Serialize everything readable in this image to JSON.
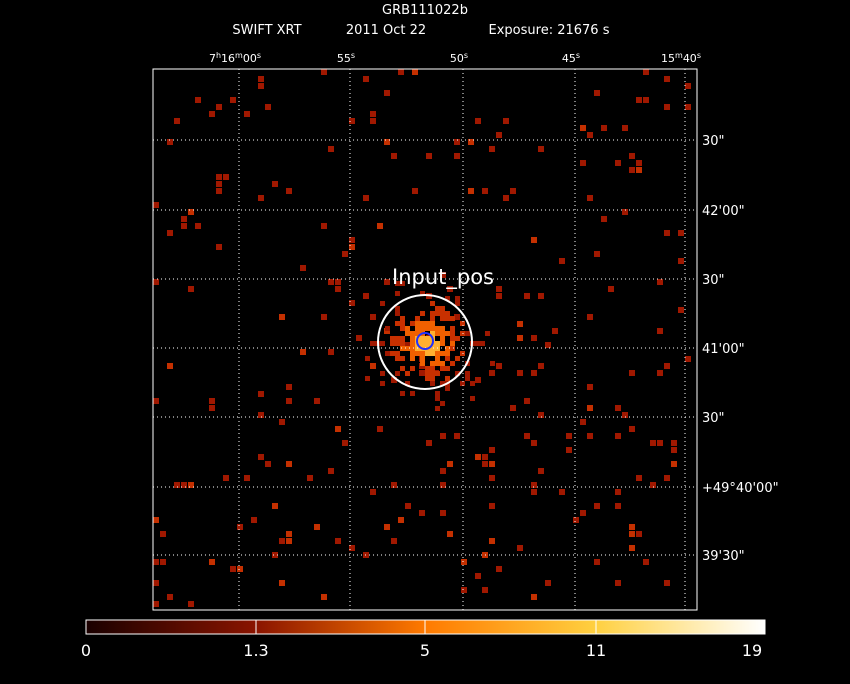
{
  "header": {
    "title": "GRB111022b",
    "instrument": "SWIFT XRT",
    "date": "2011 Oct 22",
    "exposure": "Exposure: 21676 s"
  },
  "ra_labels": [
    [
      "7",
      "h",
      "16",
      "m",
      "00",
      "s"
    ],
    [
      "55",
      "s"
    ],
    [
      "50",
      "s"
    ],
    [
      "45",
      "s"
    ],
    [
      "15",
      "m",
      "40",
      "s"
    ]
  ],
  "dec_labels": [
    "30\"",
    "42'00\"",
    "30\"",
    "41'00\"",
    "30\"",
    "+49°40'00\"",
    "39'30\""
  ],
  "region_label": "Input_pos",
  "colorbar": {
    "labels": [
      "0",
      "1.3",
      "5",
      "11",
      "19"
    ]
  }
}
